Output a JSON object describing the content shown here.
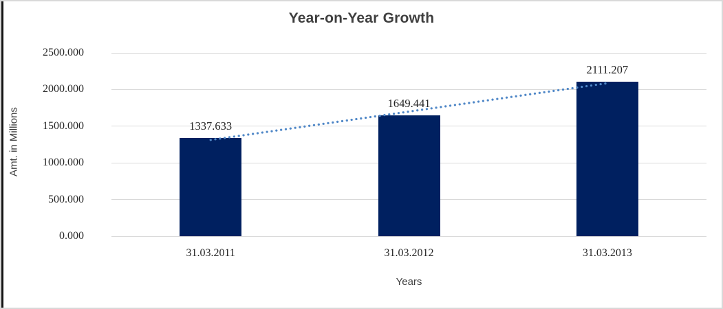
{
  "chart_data": {
    "type": "bar",
    "title": "Year-on-Year Growth",
    "xlabel": "Years",
    "ylabel": "Amt. in Millions",
    "categories": [
      "31.03.2011",
      "31.03.2012",
      "31.03.2013"
    ],
    "values": [
      1337.633,
      1649.441,
      2111.207
    ],
    "data_labels": [
      "1337.633",
      "1649.441",
      "2111.207"
    ],
    "ylim": [
      0,
      2500
    ],
    "ytick_labels": [
      "0.000",
      "500.000",
      "1000.000",
      "1500.000",
      "2000.000",
      "2500.000"
    ],
    "grid": true,
    "legend": "none",
    "bar_color": "#002060",
    "trendline": {
      "type": "linear",
      "style": "dotted",
      "color": "#4f87c7"
    },
    "gridline_color": "#d9d9d9",
    "axis_text_color": "#262626",
    "title_color": "#3f3f3f"
  }
}
